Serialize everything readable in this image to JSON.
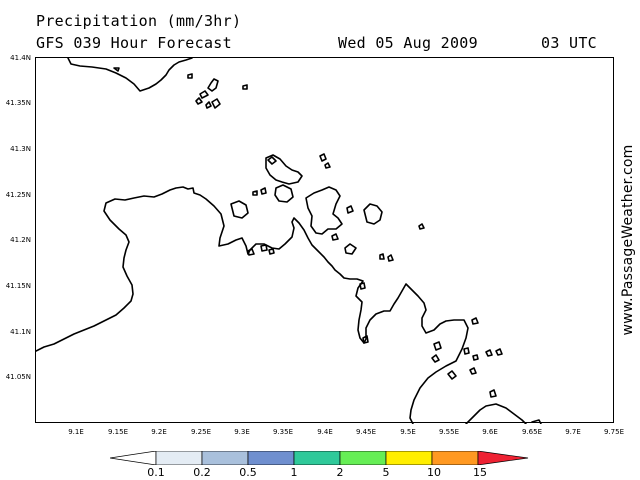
{
  "header": {
    "title": "Precipitation (mm/3hr)",
    "subtitle": "GFS 039 Hour Forecast",
    "date": "Wed 05 Aug 2009",
    "time": "03 UTC"
  },
  "watermark": "www.PassageWeather.com",
  "map": {
    "lat_range": [
      41.0,
      41.4
    ],
    "lon_range": [
      9.05,
      9.75
    ],
    "lat_ticks": [
      "41.4N",
      "41.35N",
      "41.3N",
      "41.25N",
      "41.2N",
      "41.15N",
      "41.1N",
      "41.05N"
    ],
    "lon_ticks": [
      "9.1E",
      "9.15E",
      "9.2E",
      "9.25E",
      "9.3E",
      "9.35E",
      "9.4E",
      "9.45E",
      "9.5E",
      "9.55E",
      "9.6E",
      "9.65E",
      "9.7E",
      "9.75E"
    ],
    "coastline_color": "#000000",
    "sea_color": "#ffffff"
  },
  "legend": {
    "labels": [
      "0.1",
      "0.2",
      "0.5",
      "1",
      "2",
      "5",
      "10",
      "15"
    ],
    "colors": [
      "#ffffff",
      "#e4ecf4",
      "#a9c0dc",
      "#6f8fcf",
      "#2fc99a",
      "#66ee55",
      "#ffee00",
      "#ff9922",
      "#ee2233"
    ]
  }
}
